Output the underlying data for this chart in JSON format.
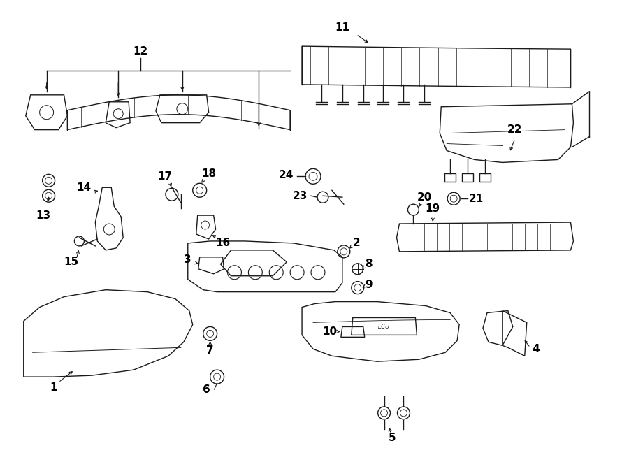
{
  "bg_color": "#ffffff",
  "line_color": "#1a1a1a",
  "fig_width": 9.0,
  "fig_height": 6.61,
  "lw": 1.0,
  "font_size": 11
}
